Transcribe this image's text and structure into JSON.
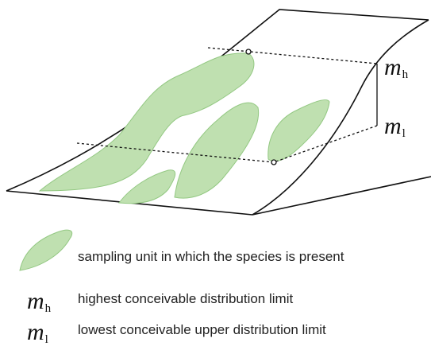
{
  "diagram": {
    "labels": [
      {
        "symbol": "m",
        "subscript": "h"
      },
      {
        "symbol": "m",
        "subscript": "l"
      }
    ]
  },
  "legend": {
    "items": [
      {
        "text": "sampling unit in which the species is present"
      },
      {
        "symbol": "m",
        "subscript": "h",
        "text": "highest conceivable distribution limit"
      },
      {
        "symbol": "m",
        "subscript": "l",
        "text": "lowest conceivable upper distribution limit"
      }
    ]
  }
}
